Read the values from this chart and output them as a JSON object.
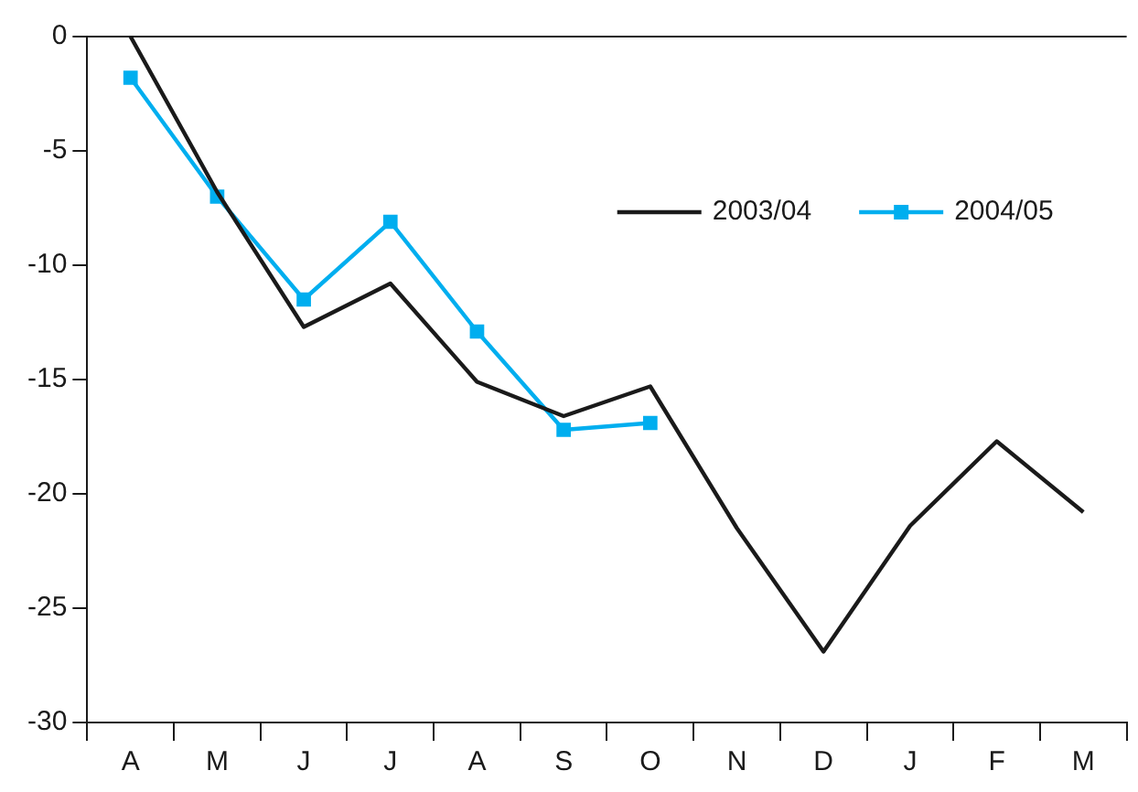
{
  "chart_data": {
    "type": "line",
    "categories": [
      "A",
      "M",
      "J",
      "J",
      "A",
      "S",
      "O",
      "N",
      "D",
      "J",
      "F",
      "M"
    ],
    "series": [
      {
        "name": "2003/04",
        "color": "#1a1a1a",
        "marker": "none",
        "values": [
          0,
          -6.8,
          -12.7,
          -10.8,
          -15.1,
          -16.6,
          -15.3,
          -21.5,
          -26.9,
          -21.4,
          -17.7,
          -20.8
        ]
      },
      {
        "name": "2004/05",
        "color": "#00aeef",
        "marker": "square",
        "values": [
          -1.8,
          -7.0,
          -11.5,
          -8.1,
          -12.9,
          -17.2,
          -16.9,
          null,
          null,
          null,
          null,
          null
        ]
      }
    ],
    "ylim": [
      -30,
      0
    ],
    "yticks": [
      0,
      -5,
      -10,
      -15,
      -20,
      -25,
      -30
    ],
    "grid": false,
    "legend": "top right"
  }
}
